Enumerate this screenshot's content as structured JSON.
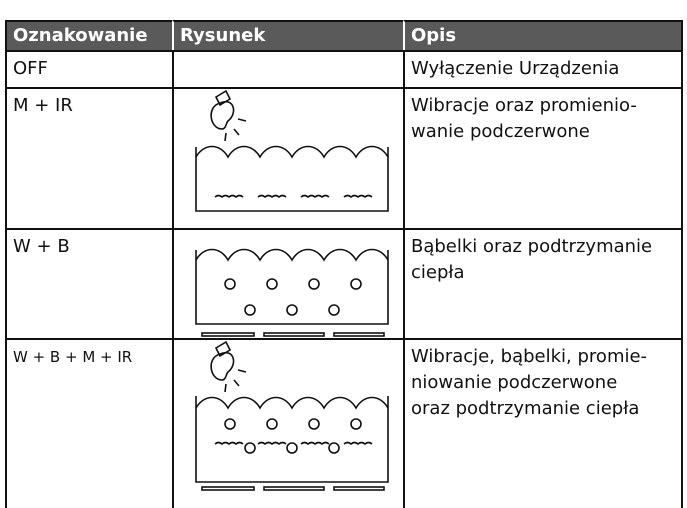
{
  "table": {
    "header": [
      "Oznakowanie",
      "Rysunek",
      "Opis"
    ],
    "rows": [
      {
        "label": "OFF",
        "description": [
          "Wyłączenie  Urządzenia"
        ]
      },
      {
        "label": "M + IR",
        "description": [
          "Wibracje oraz promienio-",
          "wanie podczerwone"
        ]
      },
      {
        "label": "W + B",
        "description": [
          "Bąbelki oraz podtrzymanie",
          "ciepła"
        ]
      },
      {
        "label": "W + B + M + IR",
        "description": [
          "Wibracje, bąbelki, promie-",
          "niowanie podczerwone",
          "oraz podtrzymanie ciepła"
        ]
      }
    ]
  }
}
